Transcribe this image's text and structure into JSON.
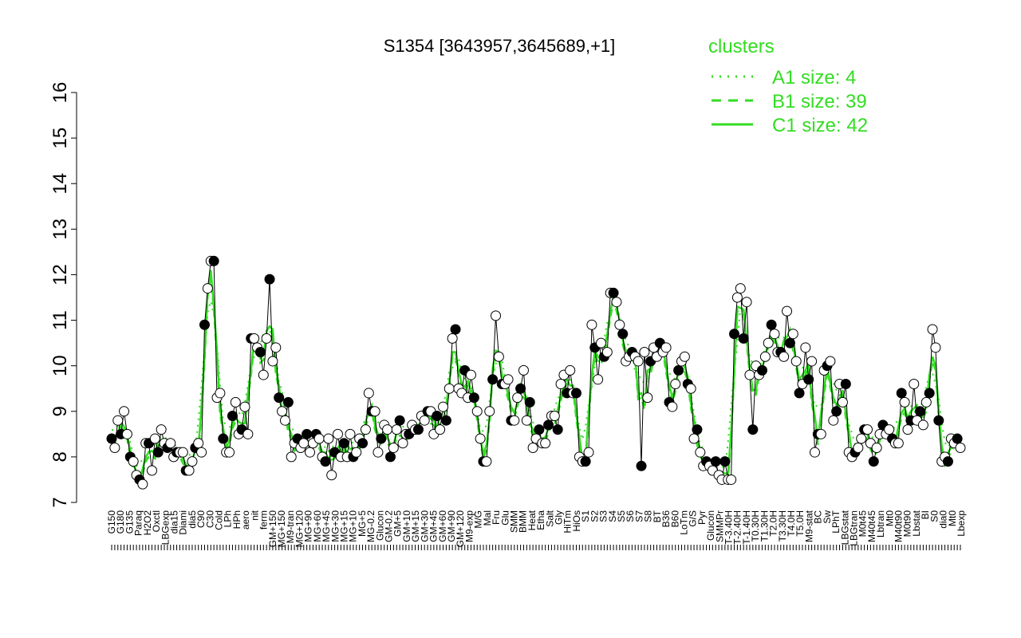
{
  "chart_data": {
    "type": "line",
    "title": "S1354 [3643957,3645689,+1]",
    "xlabel": "",
    "ylabel": "",
    "ylim": [
      7,
      16
    ],
    "yticks": [
      7,
      8,
      9,
      10,
      11,
      12,
      13,
      14,
      15,
      16
    ],
    "legend": {
      "title": "clusters",
      "placement": "top-right",
      "entries": [
        {
          "label": "A1 size: 4",
          "style": "dotted"
        },
        {
          "label": "B1 size: 39",
          "style": "dashed"
        },
        {
          "label": "C1 size: 42",
          "style": "solid"
        }
      ]
    },
    "xtick_labels": [
      "G150",
      "G180",
      "G135",
      "Paraq",
      "H2O2",
      "Oxctl",
      "LBGexp",
      "dia15",
      "Diami",
      "dia5",
      "C90",
      "C30",
      "Cold",
      "LPh",
      "HPh",
      "aero",
      "nit",
      "ferm",
      "GM+150",
      "MG+150",
      "M9-tran",
      "MG+120",
      "MG+90",
      "MG+60",
      "MG+45",
      "MG+30",
      "MG+15",
      "MG+10",
      "MG+5",
      "MG-0.2",
      "Glucon",
      "GM-0.2",
      "GM+5",
      "GM+10",
      "GM+15",
      "GM+30",
      "GM+45",
      "GM+60",
      "GM+90",
      "GM+120",
      "M9-exp",
      "M/G",
      "Mal",
      "Fru",
      "Glu",
      "SMM",
      "BMM",
      "Heat",
      "Etha",
      "Salt",
      "Gly",
      "HiTm",
      "HiOs",
      "S1",
      "S2",
      "S3",
      "S4",
      "S5",
      "S6",
      "S7",
      "S8",
      "BT",
      "B36",
      "B60",
      "LoTm",
      "G/S",
      "Pyr",
      "Glucon",
      "SMMPr",
      "T-3.40H",
      "T-2.40H",
      "T-1.40H",
      "T0.30H",
      "T1.30H",
      "T2.0H",
      "T3.30H",
      "T4.0H",
      "T5.0H",
      "M9-stat",
      "BC",
      "Sw",
      "LPhT",
      "LBGstat",
      "LBGtran",
      "M0t45",
      "M40t45",
      "Lbtran",
      "Mt0",
      "M40t90",
      "M0t90",
      "Lbstat",
      "BI",
      "S0",
      "dia0",
      "Mt0",
      "Lbexp"
    ],
    "series": [
      {
        "values": [
          8.4,
          8.2,
          8.8,
          8.5,
          9.0,
          8.5,
          8.0,
          7.9,
          7.6,
          7.5,
          7.4,
          8.3,
          8.3,
          7.7,
          8.4,
          8.1,
          8.6,
          8.3,
          8.2,
          8.3,
          8.0,
          8.1,
          8.1,
          8.1,
          7.7,
          7.7,
          7.9,
          8.2,
          8.3,
          8.1,
          10.9,
          11.7,
          12.3,
          12.3,
          9.3,
          9.4,
          8.4,
          8.1,
          8.1,
          8.9,
          9.2,
          8.5,
          8.6,
          9.1,
          8.5,
          10.6,
          10.6,
          10.4,
          10.3,
          9.8,
          10.6,
          11.9,
          10.1,
          10.4,
          9.3,
          9.0,
          8.8,
          9.2,
          8.0,
          8.3,
          8.4,
          8.2,
          8.3,
          8.5,
          8.1,
          8.3,
          8.5,
          8.4,
          8.0,
          7.9,
          8.4,
          7.6,
          8.1,
          8.5,
          8.0,
          8.3,
          8.0,
          8.5,
          8.0,
          8.1,
          8.4,
          8.3,
          8.6,
          9.4,
          9.0,
          9.0,
          8.1,
          8.4,
          8.7,
          8.6,
          8.0,
          8.2,
          8.6,
          8.8,
          8.3,
          8.5,
          8.5,
          8.7,
          8.6,
          8.6,
          8.9,
          8.8,
          9.0,
          9.0,
          8.5,
          8.9,
          8.6,
          9.1,
          8.8,
          9.5,
          10.6,
          10.8,
          9.5,
          9.4,
          9.9,
          9.3,
          9.8,
          9.3,
          9.0,
          8.4,
          7.9,
          7.9,
          9.0,
          9.7,
          11.1,
          10.2,
          9.6,
          9.6,
          9.7,
          8.8,
          8.8,
          9.3,
          9.5,
          9.9,
          8.8,
          9.2,
          8.2,
          8.4,
          8.6,
          8.3,
          8.3,
          8.7,
          8.9,
          8.9,
          8.6,
          9.6,
          9.8,
          9.4,
          9.9,
          9.4,
          9.4,
          8.0,
          7.9,
          7.9,
          8.1,
          10.9,
          10.4,
          9.7,
          10.5,
          10.2,
          10.3,
          11.6,
          11.6,
          11.4,
          10.9,
          10.7,
          10.1,
          10.2,
          10.3,
          10.2,
          10.1,
          7.8,
          10.3,
          9.3,
          10.1,
          10.4,
          10.2,
          10.5,
          10.3,
          10.4,
          9.2,
          9.1,
          9.6,
          9.9,
          10.1,
          10.2,
          9.6,
          9.5,
          8.4,
          8.6,
          8.1,
          7.8,
          7.9,
          7.8,
          7.7,
          7.9,
          7.6,
          7.5,
          7.9,
          7.5,
          7.5,
          10.7,
          11.5,
          11.7,
          10.6,
          11.4,
          9.8,
          8.6,
          10.0,
          9.8,
          9.9,
          10.2,
          10.5,
          10.9,
          10.7,
          10.3,
          10.3,
          10.2,
          11.2,
          10.5,
          10.7,
          10.1,
          9.4,
          9.6,
          10.4,
          9.7,
          10.1,
          8.1,
          8.5,
          8.5,
          9.9,
          10.0,
          10.1,
          8.8,
          9.0,
          9.6,
          9.2,
          9.6,
          8.1,
          8.0,
          8.1,
          8.2,
          8.4,
          8.6,
          8.6,
          8.3,
          7.9,
          8.2,
          8.5,
          8.7,
          8.5,
          8.6,
          8.4,
          8.3,
          8.3,
          9.4,
          9.2,
          8.6,
          8.8,
          9.6,
          8.8,
          9.0,
          8.7,
          9.2,
          9.4,
          10.8,
          10.4,
          8.8,
          7.9,
          8.0,
          7.9,
          8.4,
          8.3,
          8.4,
          8.2
        ]
      }
    ]
  }
}
